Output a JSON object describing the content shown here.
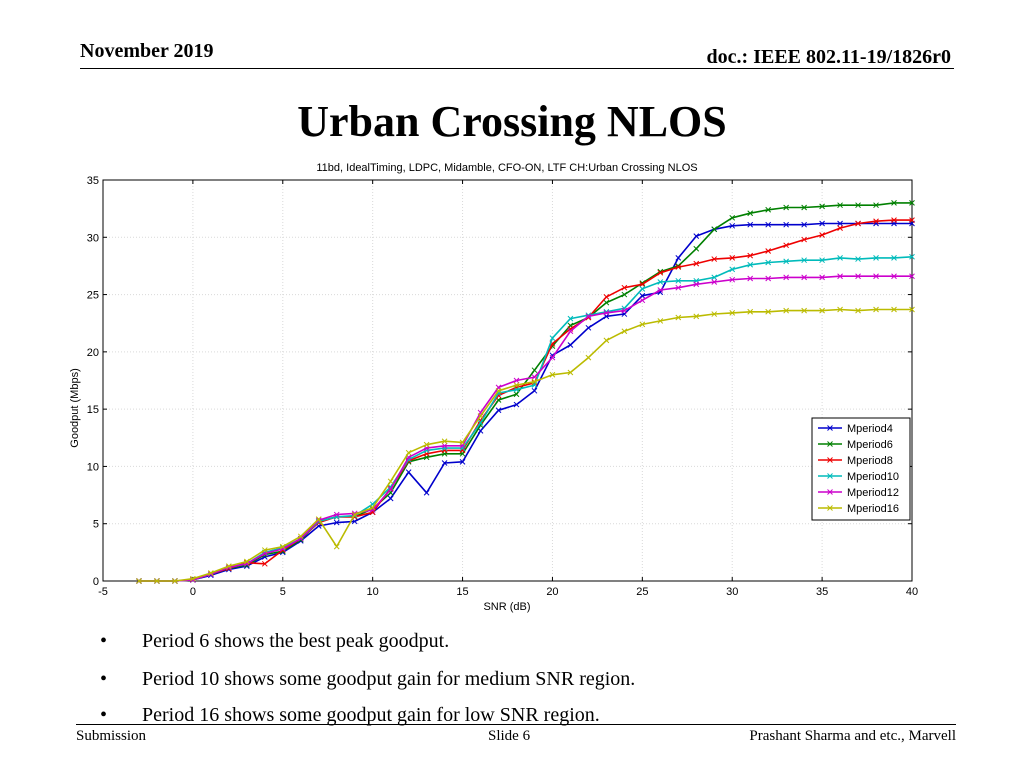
{
  "header": {
    "date": "November 2019",
    "doc": "doc.: IEEE 802.11-19/1826r0"
  },
  "slide_title": "Urban Crossing NLOS",
  "bullets": [
    "Period 6 shows the best peak goodput.",
    "Period 10 shows some goodput gain for medium SNR region.",
    "Period 16 shows some goodput gain for low SNR region."
  ],
  "bullet_glyph": "•",
  "footer": {
    "left": "Submission",
    "center": "Slide 6",
    "right": "Prashant Sharma and etc., Marvell"
  },
  "chart_data": {
    "type": "line",
    "title": "11bd, IdealTiming, LDPC, Midamble, CFO-ON, LTF CH:Urban Crossing NLOS",
    "xlabel": "SNR (dB)",
    "ylabel": "Goodput (Mbps)",
    "xlim": [
      -5,
      40
    ],
    "ylim": [
      0,
      35
    ],
    "xticks": [
      -5,
      0,
      5,
      10,
      15,
      20,
      25,
      30,
      35,
      40
    ],
    "yticks": [
      0,
      5,
      10,
      15,
      20,
      25,
      30,
      35
    ],
    "grid": true,
    "legend_position": "right",
    "x": [
      -3,
      -2,
      -1,
      0,
      1,
      2,
      3,
      4,
      5,
      6,
      7,
      8,
      9,
      10,
      11,
      12,
      13,
      14,
      15,
      16,
      17,
      18,
      19,
      20,
      21,
      22,
      23,
      24,
      25,
      26,
      27,
      28,
      29,
      30,
      31,
      32,
      33,
      34,
      35,
      36,
      37,
      38,
      39,
      40
    ],
    "series": [
      {
        "name": "Mperiod4",
        "color": "#0000cc",
        "values": [
          0,
          0,
          0,
          0.1,
          0.5,
          1.0,
          1.3,
          2.1,
          2.5,
          3.5,
          4.8,
          5.1,
          5.2,
          6.0,
          7.2,
          9.5,
          7.7,
          10.3,
          10.4,
          13.1,
          14.9,
          15.4,
          16.6,
          19.7,
          20.6,
          22.1,
          23.1,
          23.3,
          24.9,
          25.2,
          28.2,
          30.1,
          30.7,
          31.0,
          31.1,
          31.1,
          31.1,
          31.1,
          31.2,
          31.2,
          31.2,
          31.2,
          31.2,
          31.2
        ]
      },
      {
        "name": "Mperiod6",
        "color": "#008000",
        "values": [
          0,
          0,
          0,
          0.1,
          0.6,
          1.1,
          1.4,
          2.3,
          2.6,
          3.6,
          5.2,
          5.6,
          5.6,
          6.3,
          7.7,
          10.4,
          10.8,
          11.1,
          11.1,
          13.6,
          15.8,
          16.3,
          18.4,
          20.5,
          22.3,
          23.0,
          24.3,
          25.0,
          26.0,
          27.0,
          27.5,
          29.0,
          30.7,
          31.7,
          32.1,
          32.4,
          32.6,
          32.6,
          32.7,
          32.8,
          32.8,
          32.8,
          33.0,
          33.0
        ]
      },
      {
        "name": "Mperiod8",
        "color": "#ee0000",
        "values": [
          0,
          0,
          0,
          0.1,
          0.6,
          1.1,
          1.6,
          1.5,
          2.7,
          3.7,
          5.1,
          5.6,
          5.6,
          6.0,
          8.1,
          10.5,
          11.1,
          11.4,
          11.4,
          14.0,
          16.2,
          16.9,
          17.3,
          20.7,
          22.0,
          23.0,
          24.8,
          25.6,
          25.9,
          26.9,
          27.4,
          27.7,
          28.1,
          28.2,
          28.4,
          28.8,
          29.3,
          29.8,
          30.2,
          30.8,
          31.2,
          31.4,
          31.5,
          31.5
        ]
      },
      {
        "name": "Mperiod10",
        "color": "#00bbbb",
        "values": [
          0,
          0,
          0,
          0.1,
          0.6,
          1.2,
          1.5,
          2.5,
          2.9,
          3.7,
          5.2,
          5.6,
          5.7,
          6.7,
          8.2,
          10.6,
          11.4,
          11.6,
          11.6,
          13.8,
          16.4,
          16.7,
          17.1,
          21.2,
          22.9,
          23.2,
          23.5,
          23.8,
          25.5,
          26.1,
          26.2,
          26.2,
          26.5,
          27.2,
          27.6,
          27.8,
          27.9,
          28.0,
          28.0,
          28.2,
          28.1,
          28.2,
          28.2,
          28.3
        ]
      },
      {
        "name": "Mperiod12",
        "color": "#cc00cc",
        "values": [
          0,
          0,
          0,
          0.1,
          0.6,
          1.2,
          1.5,
          2.4,
          2.8,
          3.7,
          5.3,
          5.8,
          5.9,
          6.2,
          8.0,
          10.8,
          11.6,
          11.8,
          11.8,
          14.7,
          16.9,
          17.5,
          17.8,
          19.5,
          21.8,
          23.1,
          23.4,
          23.6,
          24.5,
          25.4,
          25.6,
          25.9,
          26.1,
          26.3,
          26.4,
          26.4,
          26.5,
          26.5,
          26.5,
          26.6,
          26.6,
          26.6,
          26.6,
          26.6
        ]
      },
      {
        "name": "Mperiod16",
        "color": "#bbbb00",
        "values": [
          0,
          0,
          0,
          0.2,
          0.7,
          1.3,
          1.7,
          2.7,
          3.0,
          3.9,
          5.4,
          3.0,
          5.8,
          6.4,
          8.7,
          11.2,
          11.9,
          12.2,
          12.1,
          14.4,
          16.6,
          17.1,
          17.4,
          18.0,
          18.2,
          19.5,
          21.0,
          21.8,
          22.4,
          22.7,
          23.0,
          23.1,
          23.3,
          23.4,
          23.5,
          23.5,
          23.6,
          23.6,
          23.6,
          23.7,
          23.6,
          23.7,
          23.7,
          23.7
        ]
      }
    ]
  }
}
